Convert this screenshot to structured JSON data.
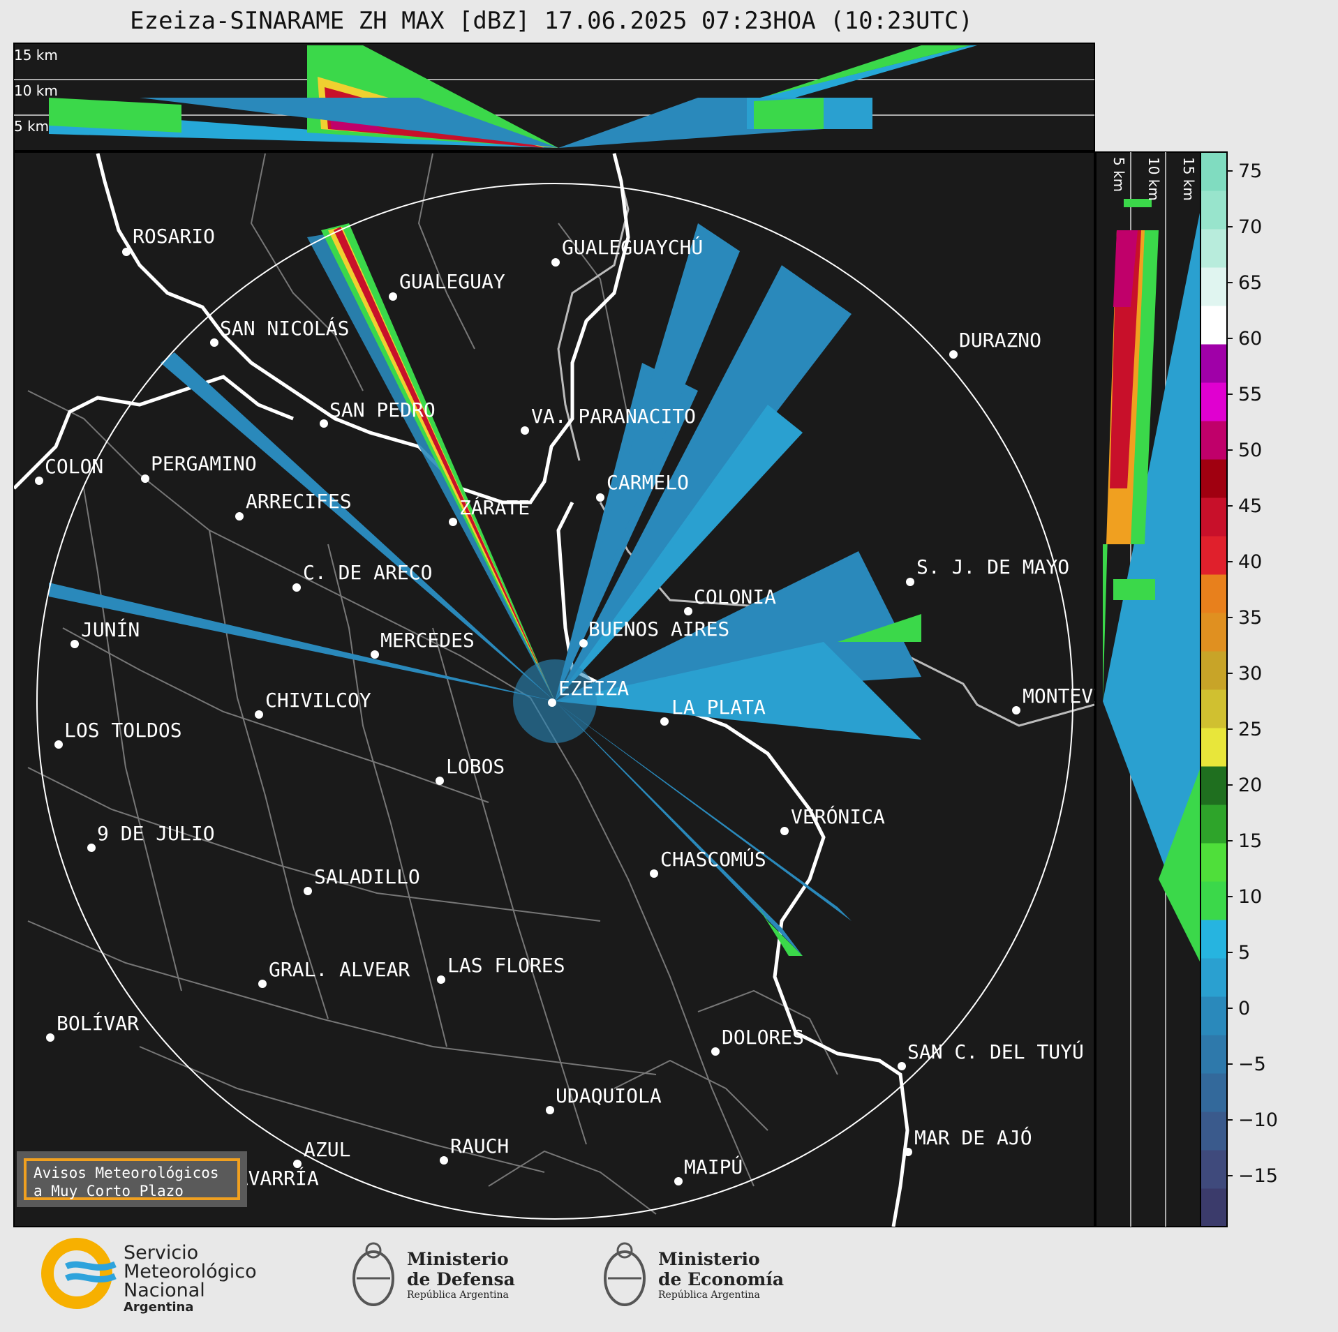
{
  "title": "Ezeiza-SINARAME ZH MAX [dBZ] 17.06.2025 07:23HOA (10:23UTC)",
  "top_section": {
    "km_labels": [
      "15 km",
      "10 km",
      "5 km"
    ]
  },
  "right_section": {
    "km_labels": [
      "5 km",
      "10 km",
      "15 km"
    ]
  },
  "cities": [
    {
      "name": "ROSARIO"
    },
    {
      "name": "GUALEGUAYCHÚ"
    },
    {
      "name": "GUALEGUAY"
    },
    {
      "name": "SAN NICOLÁS"
    },
    {
      "name": "DURAZNO"
    },
    {
      "name": "SAN PEDRO"
    },
    {
      "name": "VA. PARANACITO"
    },
    {
      "name": "COLON"
    },
    {
      "name": "PERGAMINO"
    },
    {
      "name": "CARMELO"
    },
    {
      "name": "ARRECIFES"
    },
    {
      "name": "ZÁRATE"
    },
    {
      "name": "S. J. DE MAYO"
    },
    {
      "name": "C. DE ARECO"
    },
    {
      "name": "COLONIA"
    },
    {
      "name": "JUNÍN"
    },
    {
      "name": "BUENOS AIRES"
    },
    {
      "name": "MERCEDES"
    },
    {
      "name": "EZEIZA"
    },
    {
      "name": "MONTEVIDEO"
    },
    {
      "name": "CHIVILCOY"
    },
    {
      "name": "LA PLATA"
    },
    {
      "name": "LOS TOLDOS"
    },
    {
      "name": "LOBOS"
    },
    {
      "name": "VERÓNICA"
    },
    {
      "name": "9 DE JULIO"
    },
    {
      "name": "CHASCOMÚS"
    },
    {
      "name": "SALADILLO"
    },
    {
      "name": "GRAL. ALVEAR"
    },
    {
      "name": "LAS FLORES"
    },
    {
      "name": "BOLÍVAR"
    },
    {
      "name": "DOLORES"
    },
    {
      "name": "SAN C. DEL TUYÚ"
    },
    {
      "name": "UDAQUIOLA"
    },
    {
      "name": "MAR DE AJÓ"
    },
    {
      "name": "AZUL"
    },
    {
      "name": "RAUCH"
    },
    {
      "name": "OLAVARRÍA"
    },
    {
      "name": "MAIPÚ"
    }
  ],
  "colorbar": {
    "unit": "dBZ",
    "ticks": [
      "75",
      "70",
      "65",
      "60",
      "55",
      "50",
      "45",
      "40",
      "35",
      "30",
      "25",
      "20",
      "15",
      "10",
      "5",
      "0",
      "−5",
      "−10",
      "−15"
    ],
    "colors": [
      "#3b3b6b",
      "#3f4a7c",
      "#3a5a8c",
      "#33699b",
      "#2e79ab",
      "#2a89bb",
      "#2aa0d0",
      "#26b4e0",
      "#3bd84a",
      "#4fdf3a",
      "#2ea42a",
      "#1f6f1f",
      "#e8e63a",
      "#d0c030",
      "#c8a428",
      "#e09020",
      "#e8801c",
      "#e0202c",
      "#c8102a",
      "#a00010",
      "#c0006a",
      "#e000d0",
      "#a000a8",
      "#ffffff",
      "#e0f5f0",
      "#b8ecdc",
      "#98e4cc",
      "#80dcc0"
    ]
  },
  "avisos": {
    "line1": "Avisos Meteorológicos",
    "line2": "a Muy Corto Plazo"
  },
  "logos": {
    "smn": {
      "line1": "Servicio",
      "line2": "Meteorológico",
      "line3": "Nacional",
      "line4": "Argentina"
    },
    "defensa": {
      "line1": "Ministerio",
      "line2": "de Defensa",
      "line3": "República Argentina"
    },
    "economia": {
      "line1": "Ministerio",
      "line2": "de Economía",
      "line3": "República Argentina"
    }
  }
}
